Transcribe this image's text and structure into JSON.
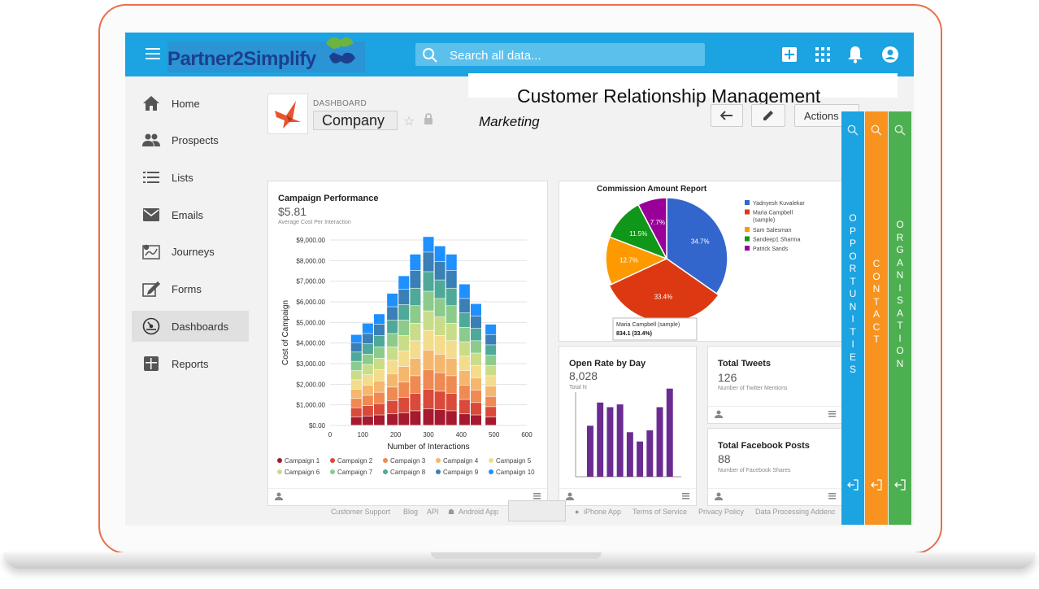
{
  "app": {
    "logo_text": "Partner2Simplify"
  },
  "search": {
    "placeholder": "Search all data..."
  },
  "topbar_icons": [
    "plus-icon",
    "apps-grid-icon",
    "bell-icon",
    "account-icon"
  ],
  "sidebar": {
    "items": [
      {
        "label": "Home",
        "icon": "home-icon"
      },
      {
        "label": "Prospects",
        "icon": "people-icon"
      },
      {
        "label": "Lists",
        "icon": "list-icon"
      },
      {
        "label": "Emails",
        "icon": "envelope-icon"
      },
      {
        "label": "Journeys",
        "icon": "journey-map-icon"
      },
      {
        "label": "Forms",
        "icon": "edit-form-icon"
      },
      {
        "label": "Dashboards",
        "icon": "speedometer-icon",
        "active": true
      },
      {
        "label": "Reports",
        "icon": "reports-icon"
      }
    ]
  },
  "header": {
    "kicker": "DASHBOARD",
    "company": "Company",
    "overlay_title": "Customer Relationship Management",
    "overlay_subtitle": "Marketing",
    "actions_label": "Actions"
  },
  "colors": {
    "topbar": "#1ba3e2",
    "opportunities": "#1ba3e2",
    "contact": "#f7931e",
    "organisation": "#4caf50"
  },
  "campaign_card": {
    "title": "Campaign Performance",
    "value": "$5.81",
    "subtitle": "Average Cost Per Interaction"
  },
  "chart_data": [
    {
      "type": "bar",
      "stacked": true,
      "xlabel": "Number of Interactions",
      "ylabel": "Cost of Campaign",
      "ylim": [
        0,
        9000
      ],
      "xlim": [
        0,
        600
      ],
      "x_ticks": [
        "0",
        "100",
        "200",
        "300",
        "400",
        "500",
        "600"
      ],
      "y_ticks": [
        "$0.00",
        "$1,000.00",
        "$2,000.00",
        "$3,000.00",
        "$4,000.00",
        "$5,000.00",
        "$6,000.00",
        "$7,000.00",
        "$8,000.00",
        "$9,000.00"
      ],
      "grid": true,
      "legend_position": "bottom",
      "x": [
        80,
        115,
        150,
        190,
        225,
        260,
        300,
        335,
        370,
        410,
        445,
        490
      ],
      "series": [
        {
          "name": "Campaign 1",
          "color": "#a6192e",
          "values": [
            400,
            450,
            500,
            550,
            600,
            700,
            800,
            750,
            700,
            550,
            500,
            400
          ]
        },
        {
          "name": "Campaign 2",
          "color": "#d94a3a",
          "values": [
            450,
            500,
            550,
            650,
            750,
            850,
            950,
            900,
            850,
            700,
            600,
            500
          ]
        },
        {
          "name": "Campaign 3",
          "color": "#ef8a52",
          "values": [
            450,
            500,
            550,
            650,
            750,
            850,
            950,
            900,
            850,
            700,
            600,
            500
          ]
        },
        {
          "name": "Campaign 4",
          "color": "#f5b66d",
          "values": [
            450,
            500,
            550,
            650,
            750,
            850,
            950,
            900,
            850,
            700,
            600,
            500
          ]
        },
        {
          "name": "Campaign 5",
          "color": "#f3dc8c",
          "values": [
            450,
            500,
            550,
            650,
            750,
            850,
            950,
            900,
            850,
            700,
            600,
            500
          ]
        },
        {
          "name": "Campaign 6",
          "color": "#c9dc88",
          "values": [
            450,
            500,
            550,
            650,
            750,
            850,
            950,
            900,
            850,
            700,
            600,
            500
          ]
        },
        {
          "name": "Campaign 7",
          "color": "#8ccb8c",
          "values": [
            450,
            500,
            550,
            650,
            750,
            850,
            950,
            900,
            850,
            700,
            600,
            500
          ]
        },
        {
          "name": "Campaign 8",
          "color": "#4fa99a",
          "values": [
            450,
            500,
            550,
            650,
            750,
            850,
            950,
            900,
            850,
            700,
            600,
            500
          ]
        },
        {
          "name": "Campaign 9",
          "color": "#3a7fb5",
          "values": [
            450,
            500,
            550,
            650,
            750,
            850,
            950,
            900,
            850,
            700,
            600,
            500
          ]
        },
        {
          "name": "Campaign 10",
          "color": "#1e90ff",
          "values": [
            400,
            500,
            500,
            650,
            650,
            800,
            750,
            750,
            800,
            700,
            600,
            500
          ]
        }
      ]
    },
    {
      "type": "pie",
      "title": "Commission Amount Report",
      "slices": [
        {
          "label": "Yadnyesh Kuvalekar",
          "value": 34.7,
          "color": "#3366cc"
        },
        {
          "label": "Maria Campbell (sample)",
          "value": 33.4,
          "color": "#dc3912"
        },
        {
          "label": "Sam Salesman",
          "value": 12.7,
          "color": "#ff9900"
        },
        {
          "label": "Sandeep1 Sharma",
          "value": 11.5,
          "color": "#109618"
        },
        {
          "label": "Patrick Sands",
          "value": 7.7,
          "color": "#990099"
        }
      ],
      "tooltip": {
        "label": "Maria Campbell (sample)",
        "value": "834.1 (33.4%)"
      },
      "legend_position": "right"
    },
    {
      "type": "bar",
      "title": "Open Rate by Day",
      "values": [
        55,
        80,
        75,
        78,
        48,
        38,
        50,
        75,
        95
      ],
      "ylim": [
        0,
        100
      ],
      "color": "#6a2c91"
    }
  ],
  "open_rate_card": {
    "title": "Open Rate by Day",
    "value": "8,028",
    "subtitle": "Total N"
  },
  "tweets_card": {
    "title": "Total Tweets",
    "value": "126",
    "subtitle": "Number of Twitter Mentions"
  },
  "facebook_card": {
    "title": "Total Facebook Posts",
    "value": "88",
    "subtitle": "Number of Facebook Shares"
  },
  "footer": {
    "links": [
      "Customer Support",
      "Blog",
      "API",
      "Android App",
      "iPhone App",
      "Terms of Service",
      "Privacy Policy",
      "Data Processing Addenc"
    ]
  },
  "side_panels": [
    {
      "label": "OPPORTUNITIES",
      "color": "#1ba3e2"
    },
    {
      "label": "CONTACT",
      "color": "#f7931e"
    },
    {
      "label": "ORGANISATION",
      "color": "#4caf50"
    }
  ]
}
